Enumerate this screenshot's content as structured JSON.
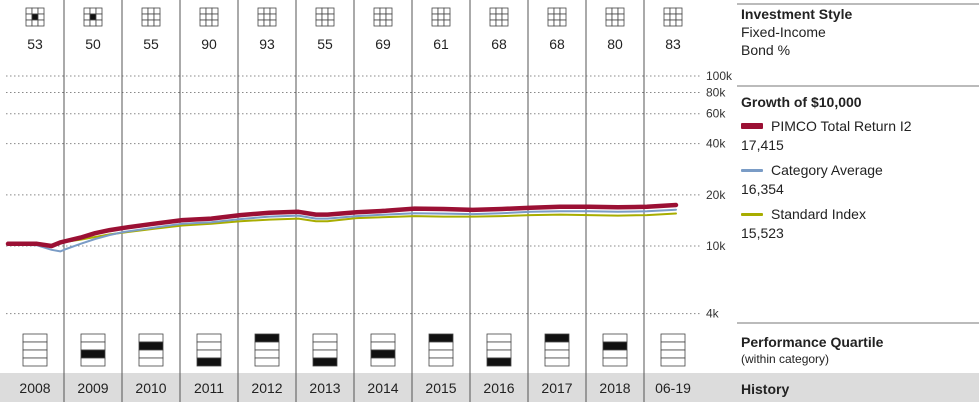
{
  "chart_data": {
    "type": "line",
    "title": "Growth of  $10,000",
    "y_scale": "log",
    "ylim": [
      4000,
      100000
    ],
    "yticks": [
      {
        "value": 100000,
        "label": "100k"
      },
      {
        "value": 80000,
        "label": "80k"
      },
      {
        "value": 60000,
        "label": "60k"
      },
      {
        "value": 40000,
        "label": "40k"
      },
      {
        "value": 20000,
        "label": "20k"
      },
      {
        "value": 10000,
        "label": "10k"
      },
      {
        "value": 4000,
        "label": "4k"
      }
    ],
    "years": [
      "2008",
      "2009",
      "2010",
      "2011",
      "2012",
      "2013",
      "2014",
      "2015",
      "2016",
      "2017",
      "2018",
      "06-19"
    ],
    "x": [
      2008.0,
      2008.5,
      2008.75,
      2008.9,
      2009.0,
      2009.25,
      2009.5,
      2009.75,
      2010.0,
      2010.5,
      2011.0,
      2011.5,
      2012.0,
      2012.5,
      2013.0,
      2013.3,
      2013.5,
      2014.0,
      2014.5,
      2015.0,
      2015.5,
      2016.0,
      2016.5,
      2017.0,
      2017.5,
      2018.0,
      2018.5,
      2019.0,
      2019.5
    ],
    "series": [
      {
        "name": "PIMCO Total Return I2",
        "final_label": "17,415",
        "color": "#9b1034",
        "values": [
          10300,
          10300,
          10000,
          10500,
          10700,
          11200,
          11900,
          12400,
          12800,
          13500,
          14200,
          14500,
          15200,
          15700,
          15900,
          15300,
          15300,
          15800,
          16100,
          16600,
          16500,
          16300,
          16500,
          16800,
          17000,
          17000,
          16900,
          17000,
          17415
        ]
      },
      {
        "name": "Category Average",
        "final_label": "16,354",
        "color": "#7a9cc6",
        "values": [
          10200,
          10100,
          9500,
          9300,
          9600,
          10300,
          11000,
          11600,
          12100,
          12800,
          13500,
          13800,
          14400,
          14900,
          15100,
          14500,
          14500,
          15000,
          15300,
          15600,
          15500,
          15400,
          15600,
          15900,
          16000,
          16000,
          15900,
          16000,
          16354
        ]
      },
      {
        "name": "Standard Index",
        "final_label": "15,523",
        "color": "#a8ad00",
        "values": [
          10200,
          10200,
          10000,
          10400,
          10600,
          10900,
          11300,
          11700,
          12000,
          12600,
          13200,
          13500,
          14000,
          14300,
          14500,
          14000,
          14000,
          14600,
          14800,
          15000,
          14900,
          14900,
          15000,
          15200,
          15300,
          15200,
          15100,
          15200,
          15523
        ]
      }
    ]
  },
  "style_box": {
    "numbers": [
      "53",
      "50",
      "55",
      "90",
      "93",
      "55",
      "69",
      "61",
      "68",
      "68",
      "80",
      "83"
    ],
    "filled_cell": [
      4,
      4,
      null,
      null,
      null,
      null,
      null,
      null,
      null,
      null,
      null,
      null
    ]
  },
  "quartile": {
    "values": [
      null,
      3,
      2,
      4,
      1,
      4,
      3,
      1,
      4,
      1,
      2,
      null
    ]
  },
  "side": {
    "investment_style_title": "Investment Style",
    "investment_style_line1": "Fixed-Income",
    "investment_style_line2": "Bond %",
    "growth_title": "Growth of  $10,000",
    "legend": [
      {
        "label": "PIMCO Total Return I2",
        "value": "17,415"
      },
      {
        "label": "Category Average",
        "value": "16,354"
      },
      {
        "label": "Standard Index",
        "value": "15,523"
      }
    ],
    "quartile_title": "Performance Quartile",
    "quartile_sub": "(within category)",
    "history_label": "History"
  },
  "colors": {
    "history_bar": "#dcdcdc",
    "grid": "#555555"
  }
}
